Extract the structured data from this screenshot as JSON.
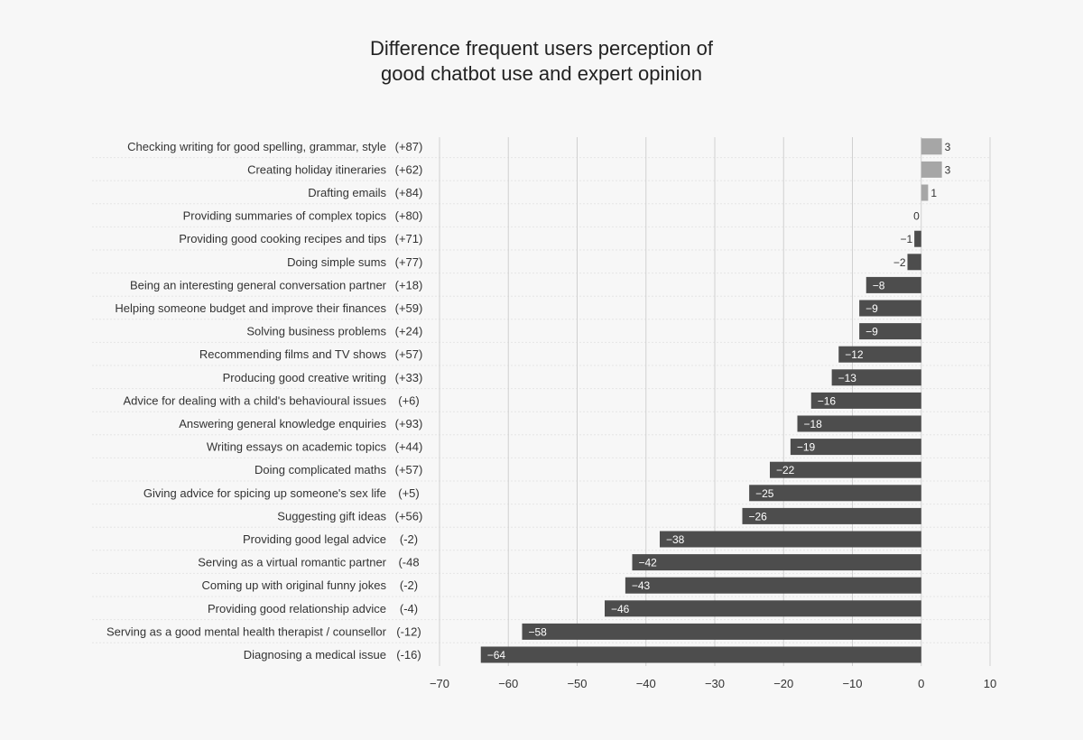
{
  "chart_data": {
    "type": "bar",
    "orientation": "horizontal",
    "title_lines": [
      "Difference frequent users perception of",
      "good chatbot use and expert opinion"
    ],
    "xlim": [
      -70,
      10
    ],
    "xticks": [
      -70,
      -60,
      -50,
      -40,
      -30,
      -20,
      -10,
      0,
      10
    ],
    "grid": true,
    "categories": [
      "Checking writing for good spelling, grammar, style",
      "Creating holiday itineraries",
      "Drafting emails",
      "Providing summaries of complex topics",
      "Providing good cooking recipes and tips",
      "Doing simple sums",
      "Being an interesting general conversation partner",
      "Helping someone budget and improve their finances",
      "Solving business problems",
      "Recommending films and TV shows",
      "Producing good creative writing",
      "Advice for dealing with a child's behavioural issues",
      "Answering general knowledge enquiries",
      "Writing essays on academic topics",
      "Doing complicated maths",
      "Giving advice for spicing up someone's sex life",
      "Suggesting gift ideas",
      "Providing good legal advice",
      "Serving as a virtual romantic partner",
      "Coming up with original funny jokes",
      "Providing good relationship advice",
      "Serving as a good mental health therapist / counsellor",
      "Diagnosing a medical issue"
    ],
    "scores": [
      "(+87)",
      "(+62)",
      "(+84)",
      "(+80)",
      "(+71)",
      "(+77)",
      "(+18)",
      "(+59)",
      "(+24)",
      "(+57)",
      "(+33)",
      "(+6)",
      "(+93)",
      "(+44)",
      "(+57)",
      "(+5)",
      "(+56)",
      "(-2)",
      "(-48",
      "(-2)",
      "(-4)",
      "(-12)",
      "(-16)"
    ],
    "values": [
      3,
      3,
      1,
      0,
      -1,
      -2,
      -8,
      -9,
      -9,
      -12,
      -13,
      -16,
      -18,
      -19,
      -22,
      -25,
      -26,
      -38,
      -42,
      -43,
      -46,
      -58,
      -64
    ],
    "value_labels": [
      "3",
      "3",
      "1",
      "0",
      "-1",
      "-2",
      "-8",
      "-9",
      "-9",
      "-12",
      "-13",
      "-16",
      "-18",
      "-19",
      "-22",
      "-25",
      "-26",
      "-38",
      "-42",
      "-43",
      "-46",
      "-58",
      "-64"
    ],
    "colors": {
      "negative": "#4d4d4d",
      "positive": "#a6a6a6",
      "grid": "#d0d0d0",
      "row_divider": "#e6e6e6"
    }
  }
}
